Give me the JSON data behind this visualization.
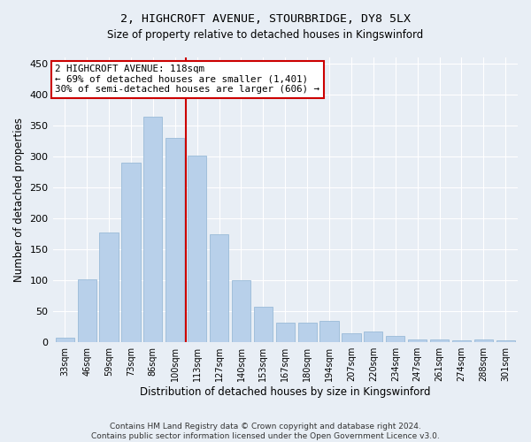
{
  "title1": "2, HIGHCROFT AVENUE, STOURBRIDGE, DY8 5LX",
  "title2": "Size of property relative to detached houses in Kingswinford",
  "xlabel": "Distribution of detached houses by size in Kingswinford",
  "ylabel": "Number of detached properties",
  "categories": [
    "33sqm",
    "46sqm",
    "59sqm",
    "73sqm",
    "86sqm",
    "100sqm",
    "113sqm",
    "127sqm",
    "140sqm",
    "153sqm",
    "167sqm",
    "180sqm",
    "194sqm",
    "207sqm",
    "220sqm",
    "234sqm",
    "247sqm",
    "261sqm",
    "274sqm",
    "288sqm",
    "301sqm"
  ],
  "values": [
    8,
    102,
    178,
    290,
    365,
    330,
    302,
    175,
    100,
    58,
    31,
    32,
    35,
    14,
    18,
    10,
    5,
    4,
    3,
    5,
    3
  ],
  "bar_color": "#b8d0ea",
  "bar_edgecolor": "#9abbd8",
  "background_color": "#e8eef5",
  "vline_x": 5.5,
  "vline_color": "#cc0000",
  "annotation_text": "2 HIGHCROFT AVENUE: 118sqm\n← 69% of detached houses are smaller (1,401)\n30% of semi-detached houses are larger (606) →",
  "annotation_box_color": "#ffffff",
  "annotation_box_edgecolor": "#cc0000",
  "footer_text": "Contains HM Land Registry data © Crown copyright and database right 2024.\nContains public sector information licensed under the Open Government Licence v3.0.",
  "ylim": [
    0,
    460
  ],
  "yticks": [
    0,
    50,
    100,
    150,
    200,
    250,
    300,
    350,
    400,
    450
  ]
}
